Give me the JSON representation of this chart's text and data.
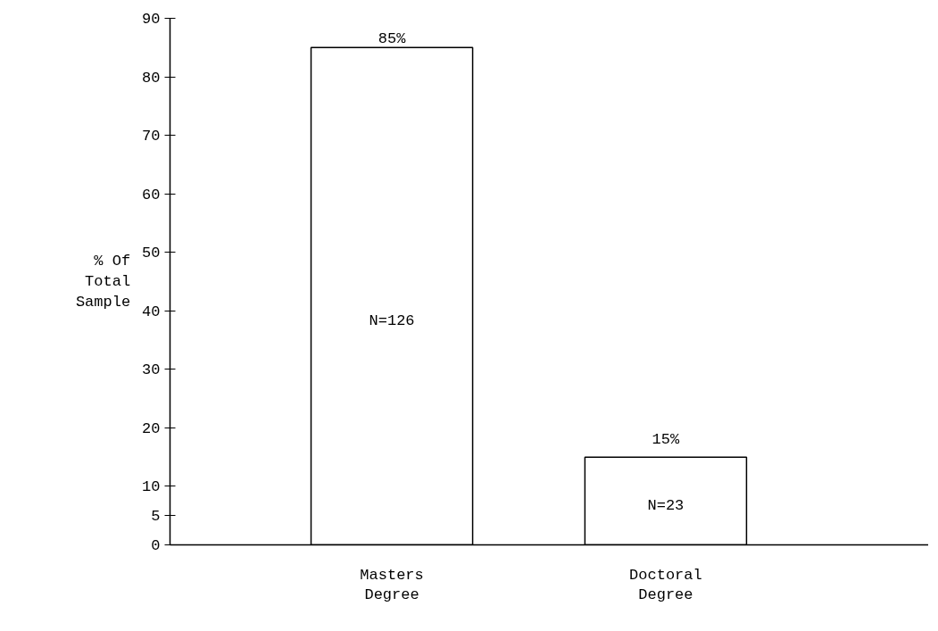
{
  "chart_data": {
    "type": "bar",
    "categories": [
      "Masters Degree",
      "Doctoral Degree"
    ],
    "values": [
      85,
      15
    ],
    "value_labels": [
      "85%",
      "15%"
    ],
    "color": "#ffffff",
    "ylabel": "% Of Total Sample",
    "ylim": [
      0,
      90
    ],
    "yticks": [
      0,
      5,
      10,
      20,
      30,
      40,
      50,
      60,
      70,
      80,
      90
    ],
    "annotations": [
      "N=126",
      "N=23"
    ],
    "grid": false
  }
}
